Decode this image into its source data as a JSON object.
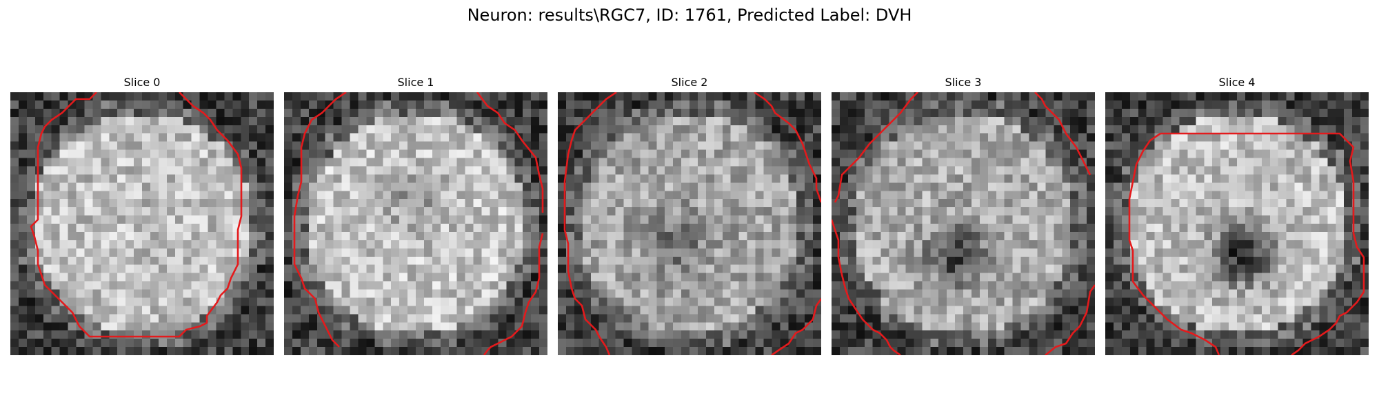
{
  "figure": {
    "title": "Neuron: results\\RGC7, ID: 1761, Predicted Label: DVH"
  },
  "colors": {
    "contour": "#e41a1c",
    "background": "#ffffff"
  },
  "panels": [
    {
      "title": "Slice 0"
    },
    {
      "title": "Slice 1"
    },
    {
      "title": "Slice 2"
    },
    {
      "title": "Slice 3"
    },
    {
      "title": "Slice 4"
    }
  ]
}
